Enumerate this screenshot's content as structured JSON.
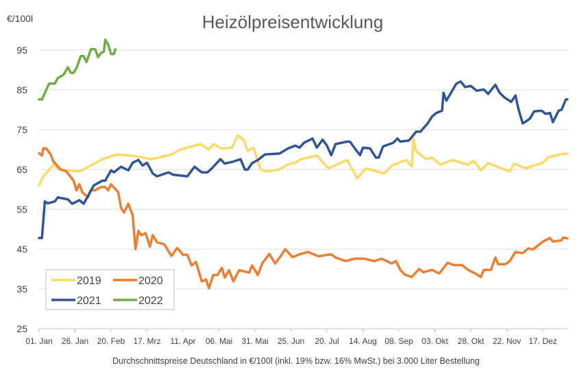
{
  "chart_data": {
    "type": "line",
    "title": "Heizölpreisentwicklung",
    "ylabel": "€/100l",
    "xlabel": "Durchschnittspreise Deutschland in €/100l (inkl. 19% bzw. 16%  MwSt.) bei 3.000 Liter Bestellung",
    "ylim": [
      25,
      95
    ],
    "xlim_days": [
      0,
      368
    ],
    "grid": true,
    "legend_position": "bottom-left",
    "y_ticks": [
      "25",
      "35",
      "45",
      "55",
      "65",
      "75",
      "85",
      "95"
    ],
    "x_ticks": [
      {
        "day": 0,
        "label": "01. Jan"
      },
      {
        "day": 25,
        "label": "26. Jan"
      },
      {
        "day": 50,
        "label": "20. Feb"
      },
      {
        "day": 75,
        "label": "17. Mrz"
      },
      {
        "day": 100,
        "label": "11. Apr"
      },
      {
        "day": 125,
        "label": "06. Mai"
      },
      {
        "day": 150,
        "label": "31. Mai"
      },
      {
        "day": 175,
        "label": "25. Jun"
      },
      {
        "day": 200,
        "label": "20. Jul"
      },
      {
        "day": 225,
        "label": "14. Aug"
      },
      {
        "day": 250,
        "label": "08. Sep"
      },
      {
        "day": 275,
        "label": "03. Okt"
      },
      {
        "day": 300,
        "label": "28. Okt"
      },
      {
        "day": 325,
        "label": "22. Nov"
      },
      {
        "day": 350,
        "label": "17. Dez"
      }
    ],
    "series": [
      {
        "name": "2019",
        "color": "#FFD966",
        "points": [
          [
            0,
            61
          ],
          [
            3,
            63.3
          ],
          [
            10,
            66.2
          ],
          [
            14,
            65
          ],
          [
            28,
            64.5
          ],
          [
            44,
            67.6
          ],
          [
            54,
            68.8
          ],
          [
            64,
            68.5
          ],
          [
            78,
            67.6
          ],
          [
            92,
            68.8
          ],
          [
            98,
            70
          ],
          [
            112,
            71.4
          ],
          [
            118,
            70
          ],
          [
            121,
            71.4
          ],
          [
            127,
            70.2
          ],
          [
            134,
            70.5
          ],
          [
            138,
            73.6
          ],
          [
            142,
            72.5
          ],
          [
            145,
            69.7
          ],
          [
            149,
            70.5
          ],
          [
            154,
            65
          ],
          [
            158,
            64.5
          ],
          [
            167,
            65
          ],
          [
            173,
            66.3
          ],
          [
            178,
            66.7
          ],
          [
            182,
            67.6
          ],
          [
            193,
            68.5
          ],
          [
            201,
            65.3
          ],
          [
            214,
            67.4
          ],
          [
            221,
            62.8
          ],
          [
            227,
            65.3
          ],
          [
            240,
            64
          ],
          [
            245,
            66
          ],
          [
            255,
            67.4
          ],
          [
            259,
            65.7
          ],
          [
            260,
            72.8
          ],
          [
            262,
            69.6
          ],
          [
            269,
            67.6
          ],
          [
            273,
            68
          ],
          [
            279,
            66.2
          ],
          [
            287,
            67.4
          ],
          [
            298,
            66.2
          ],
          [
            302,
            67.2
          ],
          [
            307,
            64.8
          ],
          [
            312,
            66.6
          ],
          [
            327,
            64.5
          ],
          [
            330,
            66.5
          ],
          [
            338,
            65.3
          ],
          [
            350,
            66.7
          ],
          [
            354,
            68.1
          ],
          [
            362,
            68.8
          ],
          [
            367,
            69
          ]
        ]
      },
      {
        "name": "2020",
        "color": "#ED7D31",
        "points": [
          [
            0,
            69.1
          ],
          [
            2,
            68.5
          ],
          [
            3,
            70.3
          ],
          [
            5,
            70.3
          ],
          [
            8,
            68.8
          ],
          [
            10,
            67
          ],
          [
            12,
            66.2
          ],
          [
            15,
            65
          ],
          [
            19,
            64.5
          ],
          [
            24,
            62.2
          ],
          [
            26,
            59.8
          ],
          [
            28,
            61.3
          ],
          [
            30,
            59.3
          ],
          [
            34,
            58
          ],
          [
            36,
            59.8
          ],
          [
            39,
            59.8
          ],
          [
            43,
            60.6
          ],
          [
            46,
            60.6
          ],
          [
            48,
            59.8
          ],
          [
            50,
            61.3
          ],
          [
            55,
            59.3
          ],
          [
            57,
            55.3
          ],
          [
            59,
            54.2
          ],
          [
            62,
            56.4
          ],
          [
            65,
            53.6
          ],
          [
            67,
            45
          ],
          [
            69,
            49.6
          ],
          [
            71,
            48.5
          ],
          [
            74,
            49
          ],
          [
            77,
            45.6
          ],
          [
            79,
            48.5
          ],
          [
            82,
            46.7
          ],
          [
            87,
            46.2
          ],
          [
            92,
            43.3
          ],
          [
            96,
            45.3
          ],
          [
            100,
            43.6
          ],
          [
            103,
            43.6
          ],
          [
            106,
            40.9
          ],
          [
            109,
            41.8
          ],
          [
            113,
            36.9
          ],
          [
            116,
            37.4
          ],
          [
            118,
            35.2
          ],
          [
            121,
            38.5
          ],
          [
            124,
            38.5
          ],
          [
            127,
            40.3
          ],
          [
            129,
            37.9
          ],
          [
            132,
            39.7
          ],
          [
            135,
            36.9
          ],
          [
            139,
            39.7
          ],
          [
            146,
            39.1
          ],
          [
            148,
            40.9
          ],
          [
            152,
            38.5
          ],
          [
            155,
            41.4
          ],
          [
            160,
            43.8
          ],
          [
            164,
            41.4
          ],
          [
            168,
            43.3
          ],
          [
            171,
            45
          ],
          [
            176,
            43
          ],
          [
            181,
            43.7
          ],
          [
            187,
            44.3
          ],
          [
            194,
            43.2
          ],
          [
            203,
            43.7
          ],
          [
            206,
            42.9
          ],
          [
            213,
            42
          ],
          [
            219,
            42.6
          ],
          [
            226,
            42.6
          ],
          [
            233,
            42
          ],
          [
            238,
            42.6
          ],
          [
            245,
            41.4
          ],
          [
            248,
            42
          ],
          [
            251,
            39.8
          ],
          [
            254,
            38.6
          ],
          [
            259,
            38
          ],
          [
            264,
            40
          ],
          [
            267,
            39.2
          ],
          [
            273,
            39.8
          ],
          [
            278,
            38.9
          ],
          [
            284,
            41.6
          ],
          [
            288,
            41
          ],
          [
            294,
            41
          ],
          [
            298,
            39.8
          ],
          [
            303,
            38.9
          ],
          [
            307,
            38
          ],
          [
            309,
            39.8
          ],
          [
            314,
            39.8
          ],
          [
            317,
            42.9
          ],
          [
            319,
            41.2
          ],
          [
            324,
            41.2
          ],
          [
            327,
            42
          ],
          [
            331,
            44.3
          ],
          [
            336,
            44
          ],
          [
            340,
            45.2
          ],
          [
            343,
            44.9
          ],
          [
            347,
            46
          ],
          [
            350,
            46.9
          ],
          [
            355,
            47.8
          ],
          [
            357,
            46.9
          ],
          [
            363,
            47.2
          ],
          [
            364,
            47.9
          ],
          [
            367,
            47.7
          ]
        ]
      },
      {
        "name": "2021",
        "color": "#2F5597",
        "points": [
          [
            0,
            47.8
          ],
          [
            2,
            47.8
          ],
          [
            4,
            57
          ],
          [
            6,
            56.5
          ],
          [
            11,
            57
          ],
          [
            13,
            58
          ],
          [
            20,
            57.5
          ],
          [
            23,
            56.4
          ],
          [
            28,
            57.3
          ],
          [
            31,
            56.4
          ],
          [
            38,
            61
          ],
          [
            44,
            62.2
          ],
          [
            46,
            62.2
          ],
          [
            50,
            64.8
          ],
          [
            52,
            64.3
          ],
          [
            57,
            65.7
          ],
          [
            62,
            64.8
          ],
          [
            65,
            66.7
          ],
          [
            69,
            67.4
          ],
          [
            72,
            66
          ],
          [
            75,
            66.7
          ],
          [
            79,
            64
          ],
          [
            82,
            63.3
          ],
          [
            90,
            64.3
          ],
          [
            93,
            63.7
          ],
          [
            103,
            63.3
          ],
          [
            108,
            65.7
          ],
          [
            113,
            64.3
          ],
          [
            117,
            64.3
          ],
          [
            120,
            65.3
          ],
          [
            126,
            67.6
          ],
          [
            129,
            66.5
          ],
          [
            135,
            67
          ],
          [
            140,
            67.6
          ],
          [
            143,
            65
          ],
          [
            145,
            65
          ],
          [
            148,
            66.6
          ],
          [
            152,
            67.4
          ],
          [
            157,
            68.8
          ],
          [
            167,
            69
          ],
          [
            173,
            70.3
          ],
          [
            178,
            71
          ],
          [
            181,
            70.5
          ],
          [
            184,
            71.7
          ],
          [
            190,
            72.8
          ],
          [
            193,
            70.5
          ],
          [
            197,
            72.5
          ],
          [
            200,
            71
          ],
          [
            203,
            68.6
          ],
          [
            206,
            71.4
          ],
          [
            214,
            72
          ],
          [
            216,
            72
          ],
          [
            220,
            70
          ],
          [
            223,
            68.6
          ],
          [
            225,
            70.5
          ],
          [
            230,
            70.3
          ],
          [
            234,
            68
          ],
          [
            236,
            68
          ],
          [
            239,
            70.8
          ],
          [
            246,
            71.7
          ],
          [
            249,
            72.8
          ],
          [
            251,
            72
          ],
          [
            257,
            72.3
          ],
          [
            262,
            74.5
          ],
          [
            265,
            74.5
          ],
          [
            270,
            76.6
          ],
          [
            273,
            78.3
          ],
          [
            276,
            79.2
          ],
          [
            280,
            79.8
          ],
          [
            281,
            84.3
          ],
          [
            283,
            82.3
          ],
          [
            287,
            84.8
          ],
          [
            290,
            86.6
          ],
          [
            293,
            87.1
          ],
          [
            296,
            85.7
          ],
          [
            300,
            86
          ],
          [
            304,
            84.8
          ],
          [
            309,
            85.1
          ],
          [
            312,
            84
          ],
          [
            317,
            86.3
          ],
          [
            320,
            84.3
          ],
          [
            323,
            83.2
          ],
          [
            328,
            82
          ],
          [
            331,
            83.6
          ],
          [
            333,
            80.3
          ],
          [
            336,
            76.6
          ],
          [
            338,
            77
          ],
          [
            341,
            77.8
          ],
          [
            344,
            79.6
          ],
          [
            349,
            79.8
          ],
          [
            352,
            79
          ],
          [
            355,
            79.2
          ],
          [
            357,
            76.9
          ],
          [
            361,
            79.8
          ],
          [
            363,
            80
          ],
          [
            366,
            82.6
          ],
          [
            367,
            82.6
          ]
        ]
      },
      {
        "name": "2022",
        "color": "#70AD47",
        "points": [
          [
            0,
            82.6
          ],
          [
            2,
            82.6
          ],
          [
            7,
            86.6
          ],
          [
            11,
            86.6
          ],
          [
            13,
            88
          ],
          [
            17,
            88.8
          ],
          [
            20,
            90.7
          ],
          [
            22,
            89.3
          ],
          [
            24,
            89.3
          ],
          [
            26,
            90.5
          ],
          [
            29,
            93.5
          ],
          [
            31,
            93.5
          ],
          [
            33,
            92
          ],
          [
            36,
            95.2
          ],
          [
            39,
            95.2
          ],
          [
            41,
            93.2
          ],
          [
            43,
            94.3
          ],
          [
            45,
            94.6
          ],
          [
            46,
            97.6
          ],
          [
            48,
            96.4
          ],
          [
            50,
            94
          ],
          [
            52,
            94
          ],
          [
            53,
            95.2
          ]
        ]
      }
    ]
  }
}
